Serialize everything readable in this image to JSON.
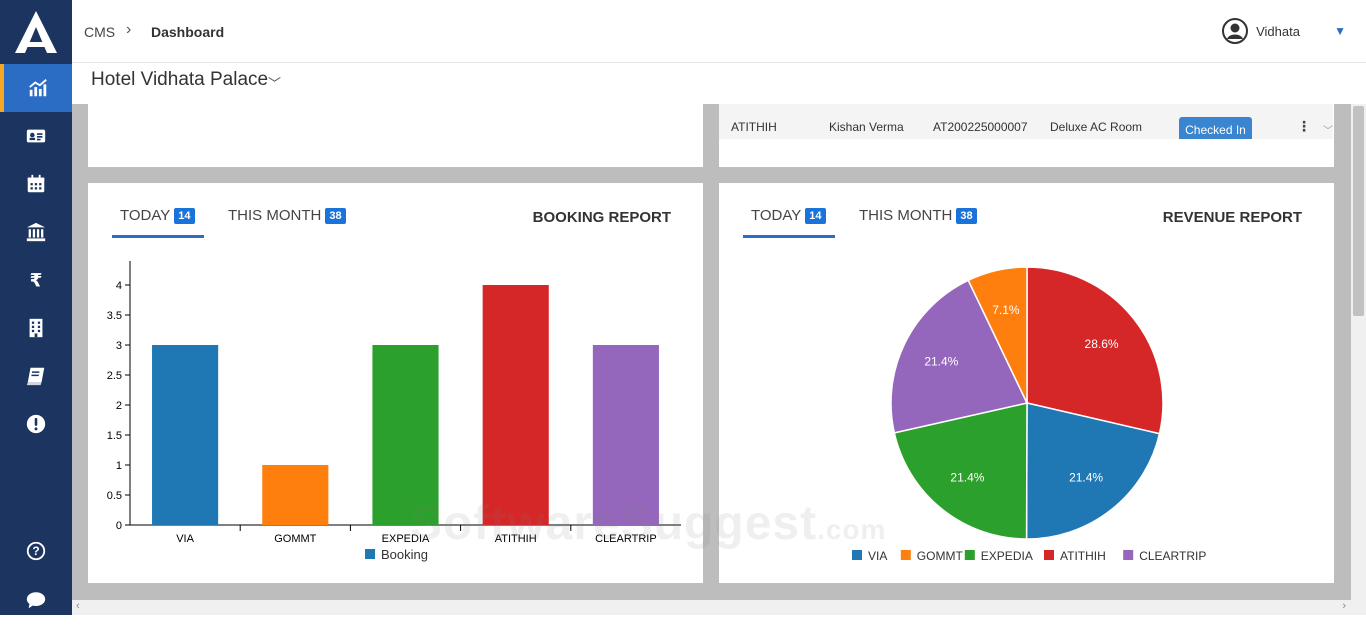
{
  "breadcrumb": {
    "root": "CMS",
    "current": "Dashboard"
  },
  "user": {
    "name": "Vidhata"
  },
  "property": {
    "name": "Hotel Vidhata Palace"
  },
  "reservation_row": {
    "source": "ATITHIH",
    "guest": "Kishan Verma",
    "booking_id": "AT200225000007",
    "room_type": "Deluxe AC Room",
    "status": "Checked In"
  },
  "booking_panel": {
    "tabs": [
      {
        "label": "TODAY",
        "count": "14"
      },
      {
        "label": "THIS MONTH",
        "count": "38"
      }
    ],
    "title": "BOOKING REPORT"
  },
  "revenue_panel": {
    "tabs": [
      {
        "label": "TODAY",
        "count": "14"
      },
      {
        "label": "THIS MONTH",
        "count": "38"
      }
    ],
    "title": "REVENUE REPORT"
  },
  "colors": {
    "VIA": "#1f77b4",
    "GOMMT": "#ff7f0e",
    "EXPEDIA": "#2ca02c",
    "ATITHIH": "#d62728",
    "CLEARTRIP": "#9467bd",
    "sidebar": "#1c3560",
    "accent": "#2b6cc4"
  },
  "chart_data": [
    {
      "type": "bar",
      "categories": [
        "VIA",
        "GOMMT",
        "EXPEDIA",
        "ATITHIH",
        "CLEARTRIP"
      ],
      "series": [
        {
          "name": "Booking",
          "values": [
            3,
            1,
            3,
            4,
            3
          ]
        }
      ],
      "yticks": [
        "0",
        "0.5",
        "1",
        "1.5",
        "2",
        "2.5",
        "3",
        "3.5",
        "4"
      ],
      "ylim": [
        0,
        4.4
      ],
      "legend": "bottom"
    },
    {
      "type": "pie",
      "categories": [
        "VIA",
        "GOMMT",
        "EXPEDIA",
        "ATITHIH",
        "CLEARTRIP"
      ],
      "values": [
        21.4,
        7.1,
        21.4,
        28.6,
        21.4
      ],
      "labels": [
        "21.4%",
        "7.1%",
        "21.4%",
        "28.6%",
        "21.4%"
      ],
      "legend": "bottom"
    }
  ],
  "watermark": {
    "main": "SoftwareSuggest",
    "suffix": ".com"
  },
  "icons": [
    "logo-icon",
    "analytics-icon",
    "id-card-icon",
    "calendar-icon",
    "bank-icon",
    "rupee-icon",
    "building-icon",
    "book-icon",
    "alert-icon",
    "help-icon",
    "chat-icon",
    "user-avatar-icon"
  ]
}
